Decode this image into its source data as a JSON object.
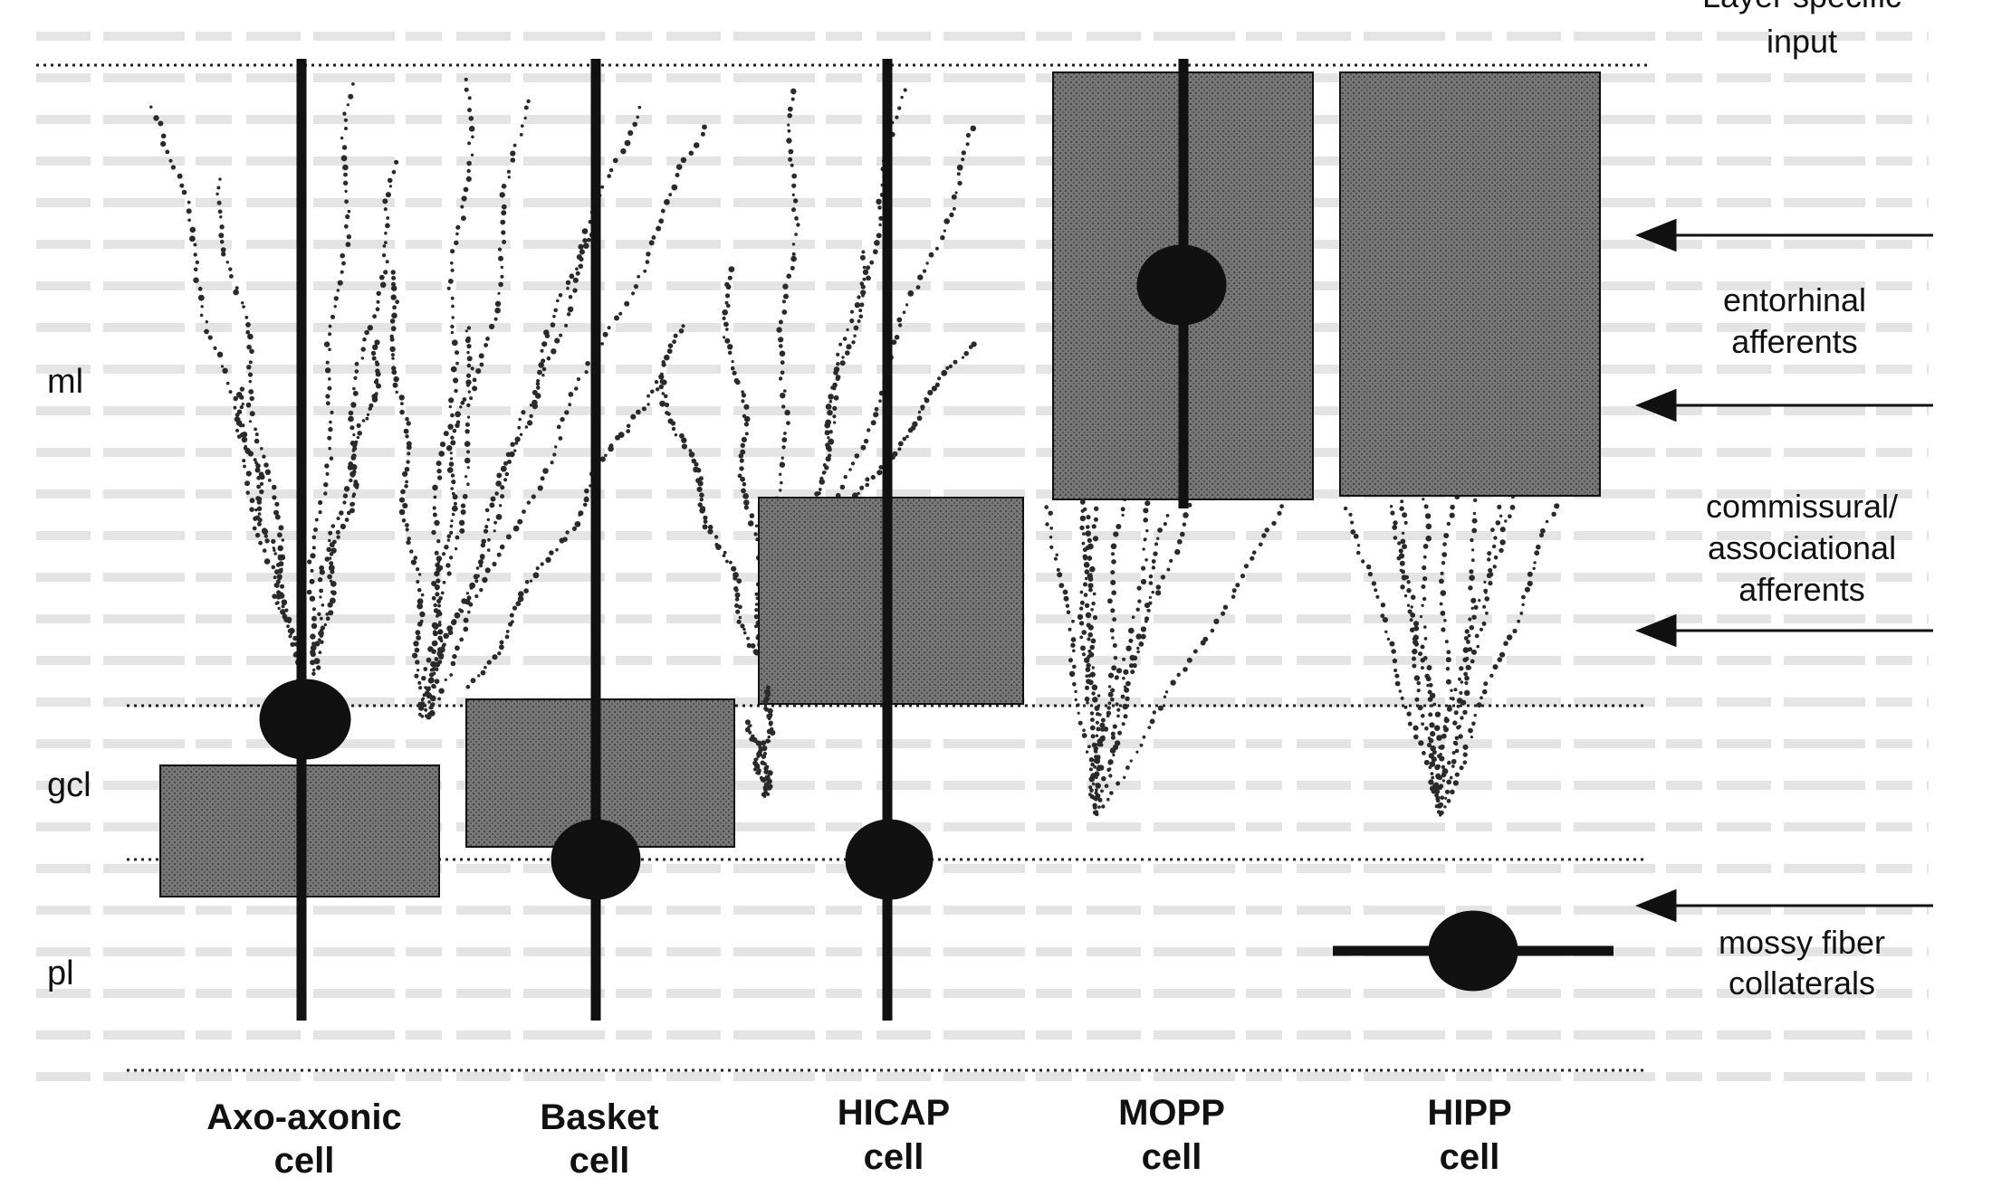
{
  "layers": {
    "ml": "ml",
    "gcl": "gcl",
    "pl": "pl"
  },
  "inputs": {
    "heading_line1": "Layer specific",
    "heading_line2": "input",
    "entorhinal_line1": "entorhinal",
    "entorhinal_line2": "afferents",
    "commissural_line1": "commissural/",
    "commissural_line2": "associational",
    "commissural_line3": "afferents",
    "mossy_line1": "mossy fiber",
    "mossy_line2": "collaterals"
  },
  "cells": [
    {
      "line1": "Axo-axonic",
      "line2": "cell"
    },
    {
      "line1": "Basket",
      "line2": "cell"
    },
    {
      "line1": "HICAP",
      "line2": "cell"
    },
    {
      "line1": "MOPP",
      "line2": "cell"
    },
    {
      "line1": "HIPP",
      "line2": "cell"
    }
  ],
  "colors": {
    "ink": "#111111",
    "axon_box": "#6e6e6e",
    "dendrite": "#2a2a2a",
    "background_text": "#b9b9b9"
  }
}
